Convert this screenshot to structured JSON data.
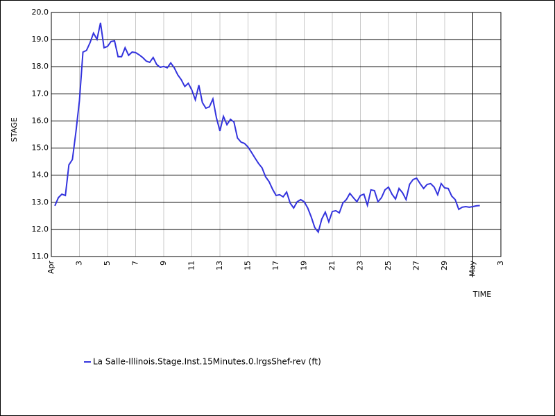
{
  "chart_data": {
    "type": "line",
    "y_label": "STAGE",
    "x_label": "TIME",
    "x": [
      0.25,
      0.5,
      0.75,
      1,
      1.25,
      1.5,
      1.75,
      2,
      2.25,
      2.5,
      2.75,
      3,
      3.25,
      3.5,
      3.75,
      4,
      4.25,
      4.5,
      4.75,
      5,
      5.25,
      5.5,
      5.75,
      6,
      6.25,
      6.5,
      6.75,
      7,
      7.25,
      7.5,
      7.75,
      8,
      8.25,
      8.5,
      8.75,
      9,
      9.25,
      9.5,
      9.75,
      10,
      10.25,
      10.5,
      10.75,
      11,
      11.25,
      11.5,
      11.75,
      12,
      12.25,
      12.5,
      12.75,
      13,
      13.25,
      13.5,
      13.75,
      14,
      14.25,
      14.5,
      14.75,
      15,
      15.25,
      15.5,
      15.75,
      16,
      16.25,
      16.5,
      16.75,
      17,
      17.25,
      17.5,
      17.75,
      18,
      18.25,
      18.5,
      18.75,
      19,
      19.25,
      19.5,
      19.75,
      20,
      20.25,
      20.5,
      20.75,
      21,
      21.25,
      21.5,
      21.75,
      22,
      22.25,
      22.5,
      22.75,
      23,
      23.25,
      23.5,
      23.75,
      24,
      24.25,
      24.5,
      24.75,
      25,
      25.25,
      25.5,
      25.75,
      26,
      26.25,
      26.5,
      26.75,
      27,
      27.25,
      27.5,
      27.75,
      28,
      28.25,
      28.5,
      28.75,
      29,
      29.25,
      29.5,
      29.75,
      30,
      30.25,
      30.5
    ],
    "series": [
      {
        "name": "La Salle-Illinois.Stage.Inst.15Minutes.0.lrgsShef-rev (ft)",
        "color": "#3333dd",
        "values": [
          12.87,
          13.17,
          13.3,
          13.25,
          14.38,
          14.58,
          15.6,
          16.75,
          18.54,
          18.6,
          18.88,
          19.24,
          19.01,
          19.62,
          18.7,
          18.75,
          18.93,
          18.95,
          18.37,
          18.37,
          18.7,
          18.42,
          18.54,
          18.52,
          18.44,
          18.34,
          18.21,
          18.16,
          18.34,
          18.08,
          17.98,
          18.01,
          17.96,
          18.14,
          17.96,
          17.7,
          17.52,
          17.27,
          17.39,
          17.14,
          16.78,
          17.32,
          16.68,
          16.47,
          16.52,
          16.81,
          16.12,
          15.63,
          16.17,
          15.86,
          16.06,
          15.96,
          15.37,
          15.22,
          15.17,
          15.04,
          14.84,
          14.63,
          14.43,
          14.27,
          13.94,
          13.76,
          13.48,
          13.25,
          13.28,
          13.2,
          13.38,
          12.97,
          12.79,
          13.02,
          13.1,
          13.02,
          12.79,
          12.46,
          12.07,
          11.9,
          12.38,
          12.64,
          12.28,
          12.66,
          12.69,
          12.61,
          12.97,
          13.1,
          13.33,
          13.17,
          13.02,
          13.25,
          13.3,
          12.89,
          13.46,
          13.43,
          13.02,
          13.17,
          13.46,
          13.56,
          13.3,
          13.12,
          13.51,
          13.35,
          13.1,
          13.66,
          13.84,
          13.89,
          13.69,
          13.51,
          13.66,
          13.69,
          13.56,
          13.28,
          13.69,
          13.53,
          13.51,
          13.23,
          13.1,
          12.74,
          12.82,
          12.84,
          12.82,
          12.84,
          12.87,
          12.88
        ]
      }
    ],
    "xlim": [
      0,
      32
    ],
    "xticks": [
      {
        "value": 0,
        "label": "Apr"
      },
      {
        "value": 2,
        "label": "3"
      },
      {
        "value": 4,
        "label": "5"
      },
      {
        "value": 6,
        "label": "7"
      },
      {
        "value": 8,
        "label": "9"
      },
      {
        "value": 10,
        "label": "11"
      },
      {
        "value": 12,
        "label": "13"
      },
      {
        "value": 14,
        "label": "15"
      },
      {
        "value": 16,
        "label": "17"
      },
      {
        "value": 18,
        "label": "19"
      },
      {
        "value": 20,
        "label": "21"
      },
      {
        "value": 22,
        "label": "23"
      },
      {
        "value": 24,
        "label": "25"
      },
      {
        "value": 26,
        "label": "27"
      },
      {
        "value": 28,
        "label": "29"
      },
      {
        "value": 30,
        "label": "May"
      },
      {
        "value": 32,
        "label": "3"
      }
    ],
    "xmarker": 30,
    "ylim": [
      11,
      20
    ],
    "yticks": [
      {
        "value": 11,
        "label": "11.0"
      },
      {
        "value": 12,
        "label": "12.0"
      },
      {
        "value": 13,
        "label": "13.0"
      },
      {
        "value": 14,
        "label": "14.0"
      },
      {
        "value": 15,
        "label": "15.0"
      },
      {
        "value": 16,
        "label": "16.0"
      },
      {
        "value": 17,
        "label": "17.0"
      },
      {
        "value": 18,
        "label": "18.0"
      },
      {
        "value": 19,
        "label": "19.0"
      },
      {
        "value": 20,
        "label": "20.0"
      }
    ],
    "grid": true
  }
}
